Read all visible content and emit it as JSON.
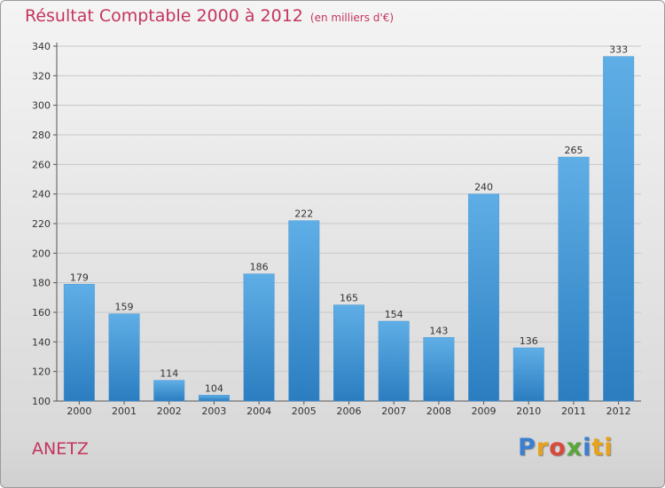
{
  "header": {
    "title": "Résultat Comptable 2000 à 2012",
    "subtitle": "(en milliers d'€)"
  },
  "footer": {
    "place": "ANETZ",
    "logo_letters": [
      "P",
      "r",
      "o",
      "x",
      "i",
      "ti"
    ]
  },
  "colors": {
    "bar_light": "#5faee6",
    "bar_dark": "#2b7dc0",
    "title": "#c4355e",
    "grid": "#c8c8c8"
  },
  "chart_data": {
    "type": "bar",
    "title": "Résultat Comptable 2000 à 2012",
    "subtitle": "(en milliers d'€)",
    "xlabel": "",
    "ylabel": "",
    "categories": [
      "2000",
      "2001",
      "2002",
      "2003",
      "2004",
      "2005",
      "2006",
      "2007",
      "2008",
      "2009",
      "2010",
      "2011",
      "2012"
    ],
    "values": [
      179,
      159,
      114,
      104,
      186,
      222,
      165,
      154,
      143,
      240,
      136,
      265,
      333
    ],
    "ylim": [
      100,
      340
    ],
    "yticks": [
      100,
      120,
      140,
      160,
      180,
      200,
      220,
      240,
      260,
      280,
      300,
      320,
      340
    ],
    "grid": true,
    "legend": "none"
  }
}
